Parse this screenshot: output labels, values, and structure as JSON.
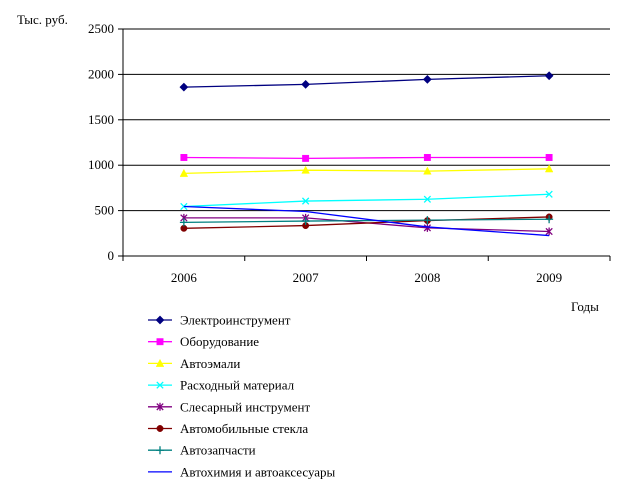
{
  "chart_data": {
    "type": "line",
    "title": "",
    "ylabel": "Тыс. руб.",
    "xlabel": "Годы",
    "categories": [
      "2006",
      "2007",
      "2008",
      "2009"
    ],
    "ylim": [
      0,
      2500
    ],
    "yticks": [
      0,
      500,
      1000,
      1500,
      2000,
      2500
    ],
    "ytick_labels": [
      "0",
      "500",
      "1000",
      "1500",
      "2000",
      "2500"
    ],
    "grid": "horizontal",
    "legend_position": "bottom",
    "series": [
      {
        "name": "Электроинструмент",
        "color": "#000080",
        "marker": "diamond",
        "values": [
          1860,
          1890,
          1945,
          1985
        ]
      },
      {
        "name": "Оборудование",
        "color": "#FF00FF",
        "marker": "square",
        "values": [
          1085,
          1075,
          1085,
          1085
        ]
      },
      {
        "name": "Автоэмали",
        "color": "#FFFF00",
        "marker": "triangle",
        "values": [
          910,
          945,
          935,
          960
        ]
      },
      {
        "name": "Расходный материал",
        "color": "#00FFFF",
        "marker": "x",
        "values": [
          545,
          605,
          625,
          680
        ]
      },
      {
        "name": "Слесарный инструмент",
        "color": "#800080",
        "marker": "star",
        "values": [
          420,
          420,
          310,
          270
        ]
      },
      {
        "name": "Автомобильные стекла",
        "color": "#800000",
        "marker": "circle",
        "values": [
          305,
          335,
          390,
          430
        ]
      },
      {
        "name": "Автозапчасти",
        "color": "#008080",
        "marker": "plus",
        "values": [
          370,
          385,
          395,
          405
        ]
      },
      {
        "name": "Автохимия и автоаксесуары",
        "color": "#0000FF",
        "marker": "none",
        "values": [
          545,
          490,
          320,
          225
        ]
      }
    ]
  }
}
